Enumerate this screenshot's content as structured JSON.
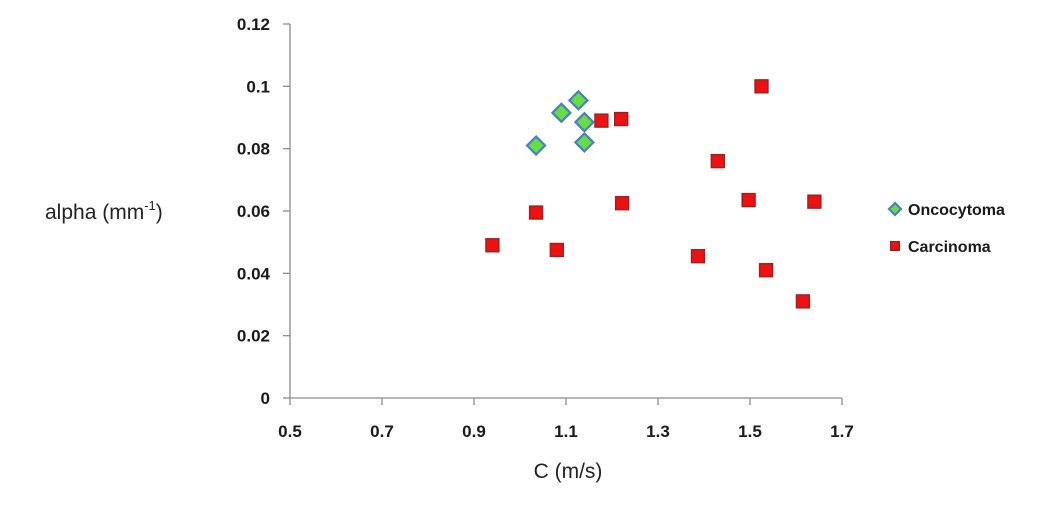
{
  "chart_data": {
    "type": "scatter",
    "title": "",
    "xlabel": "C (m/s)",
    "ylabel_main": "alpha (mm",
    "ylabel_sup": "-1",
    "ylabel_close": ")",
    "xlim": [
      0.5,
      1.7
    ],
    "ylim": [
      0,
      0.12
    ],
    "x_ticks": [
      "0.5",
      "0.7",
      "0.9",
      "1.1",
      "1.3",
      "1.5",
      "1.7"
    ],
    "y_ticks": [
      "0",
      "0.02",
      "0.04",
      "0.06",
      "0.08",
      "0.1",
      "0.12"
    ],
    "grid": false,
    "legend_position": "right",
    "series": [
      {
        "name": "Oncocytoma",
        "marker": "diamond",
        "color": "#66dd44",
        "edge_color": "#4a7fc0",
        "points": [
          {
            "x": 1.035,
            "y": 0.081
          },
          {
            "x": 1.09,
            "y": 0.0915
          },
          {
            "x": 1.127,
            "y": 0.0955
          },
          {
            "x": 1.14,
            "y": 0.0885
          },
          {
            "x": 1.14,
            "y": 0.082
          }
        ]
      },
      {
        "name": "Carcinoma",
        "marker": "square",
        "color": "#ee1111",
        "edge_color": "#992222",
        "points": [
          {
            "x": 0.94,
            "y": 0.049
          },
          {
            "x": 1.035,
            "y": 0.0595
          },
          {
            "x": 1.08,
            "y": 0.0475
          },
          {
            "x": 1.177,
            "y": 0.089
          },
          {
            "x": 1.22,
            "y": 0.0895
          },
          {
            "x": 1.222,
            "y": 0.0625
          },
          {
            "x": 1.387,
            "y": 0.0455
          },
          {
            "x": 1.43,
            "y": 0.076
          },
          {
            "x": 1.497,
            "y": 0.0635
          },
          {
            "x": 1.525,
            "y": 0.1
          },
          {
            "x": 1.535,
            "y": 0.041
          },
          {
            "x": 1.615,
            "y": 0.031
          },
          {
            "x": 1.64,
            "y": 0.063
          }
        ]
      }
    ]
  }
}
